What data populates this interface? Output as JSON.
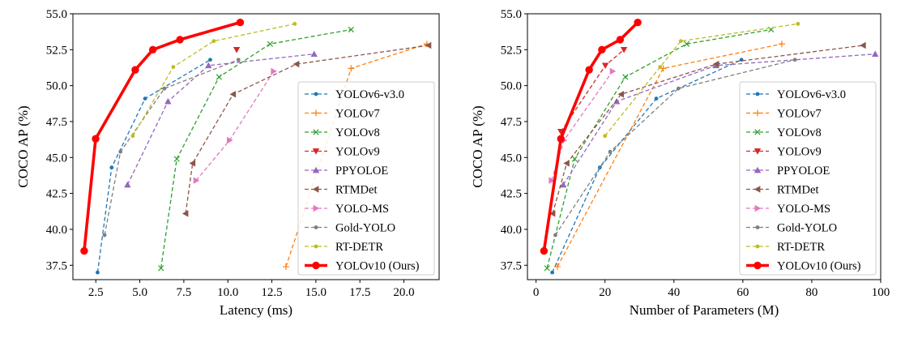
{
  "chart_data": [
    {
      "type": "line",
      "xlabel": "Latency (ms)",
      "ylabel": "COCO AP (%)",
      "xlim": [
        1.2,
        22.0
      ],
      "ylim": [
        36.5,
        55.0
      ],
      "xticks": [
        2.5,
        5.0,
        7.5,
        10.0,
        12.5,
        15.0,
        17.5,
        20.0
      ],
      "xtick_labels": [
        "2.5",
        "5.0",
        "7.5",
        "10.0",
        "12.5",
        "15.0",
        "17.5",
        "20.0"
      ],
      "yticks": [
        37.5,
        40.0,
        42.5,
        45.0,
        47.5,
        50.0,
        52.5,
        55.0
      ],
      "ytick_labels": [
        "37.5",
        "40.0",
        "42.5",
        "45.0",
        "47.5",
        "50.0",
        "52.5",
        "55.0"
      ],
      "legend_position": "lower-right",
      "series": [
        {
          "name": "YOLOv6-v3.0",
          "color": "#1f77b4",
          "marker": "point",
          "dash": "dashed",
          "x": [
            2.6,
            3.4,
            5.3,
            9.0
          ],
          "y": [
            37.0,
            44.3,
            49.1,
            51.8
          ]
        },
        {
          "name": "YOLOv7",
          "color": "#ff7f0e",
          "marker": "plus",
          "dash": "dashed",
          "x": [
            13.3,
            17.0,
            21.3
          ],
          "y": [
            37.4,
            51.2,
            52.9
          ]
        },
        {
          "name": "YOLOv8",
          "color": "#2ca02c",
          "marker": "x",
          "dash": "dashed",
          "x": [
            6.2,
            7.1,
            9.5,
            12.4,
            17.0
          ],
          "y": [
            37.3,
            44.9,
            50.6,
            52.9,
            53.9
          ]
        },
        {
          "name": "YOLOv9",
          "color": "#d62728",
          "marker": "tri-down",
          "dash": "dashed",
          "x": [
            10.5
          ],
          "y": [
            52.5
          ]
        },
        {
          "name": "PPYOLOE",
          "color": "#9467bd",
          "marker": "tri-up",
          "dash": "dashed",
          "x": [
            4.3,
            6.6,
            8.9,
            14.9
          ],
          "y": [
            43.1,
            48.9,
            51.4,
            52.2
          ]
        },
        {
          "name": "RTMDet",
          "color": "#8c564b",
          "marker": "tri-left",
          "dash": "dashed",
          "x": [
            7.6,
            8.0,
            10.3,
            13.9,
            21.4
          ],
          "y": [
            41.1,
            44.6,
            49.4,
            51.5,
            52.8
          ]
        },
        {
          "name": "YOLO-MS",
          "color": "#e377c2",
          "marker": "tri-right",
          "dash": "dashed",
          "x": [
            8.2,
            10.1,
            12.6
          ],
          "y": [
            43.4,
            46.2,
            51.0
          ]
        },
        {
          "name": "Gold-YOLO",
          "color": "#7f7f7f",
          "marker": "point",
          "dash": "dashed",
          "x": [
            3.0,
            3.9,
            6.4,
            10.6
          ],
          "y": [
            39.6,
            45.4,
            49.8,
            51.8
          ]
        },
        {
          "name": "RT-DETR",
          "color": "#bcbd22",
          "marker": "point",
          "dash": "dashed",
          "x": [
            4.6,
            6.9,
            9.2,
            13.8
          ],
          "y": [
            46.5,
            51.3,
            53.1,
            54.3
          ]
        },
        {
          "name": "YOLOv10 (Ours)",
          "color": "#ff0000",
          "marker": "circle",
          "dash": "solid",
          "bold": true,
          "x": [
            1.84,
            2.49,
            4.74,
            5.74,
            7.28,
            10.7
          ],
          "y": [
            38.5,
            46.3,
            51.1,
            52.5,
            53.2,
            54.4
          ]
        }
      ]
    },
    {
      "type": "line",
      "xlabel": "Number of Parameters (M)",
      "ylabel": "COCO AP (%)",
      "xlim": [
        -2.5,
        100.0
      ],
      "ylim": [
        36.5,
        55.0
      ],
      "xticks": [
        0,
        20,
        40,
        60,
        80,
        100
      ],
      "xtick_labels": [
        "0",
        "20",
        "40",
        "60",
        "80",
        "100"
      ],
      "yticks": [
        37.5,
        40.0,
        42.5,
        45.0,
        47.5,
        50.0,
        52.5,
        55.0
      ],
      "ytick_labels": [
        "37.5",
        "40.0",
        "42.5",
        "45.0",
        "47.5",
        "50.0",
        "52.5",
        "55.0"
      ],
      "legend_position": "lower-right",
      "series": [
        {
          "name": "YOLOv6-v3.0",
          "color": "#1f77b4",
          "marker": "point",
          "dash": "dashed",
          "x": [
            4.7,
            18.5,
            34.9,
            59.6
          ],
          "y": [
            37.0,
            44.3,
            49.1,
            51.8
          ]
        },
        {
          "name": "YOLOv7",
          "color": "#ff7f0e",
          "marker": "plus",
          "dash": "dashed",
          "x": [
            6.2,
            36.9,
            71.3
          ],
          "y": [
            37.4,
            51.2,
            52.9
          ]
        },
        {
          "name": "YOLOv8",
          "color": "#2ca02c",
          "marker": "x",
          "dash": "dashed",
          "x": [
            3.2,
            11.2,
            25.9,
            43.7,
            68.2
          ],
          "y": [
            37.3,
            44.9,
            50.6,
            52.9,
            53.9
          ]
        },
        {
          "name": "YOLOv9",
          "color": "#d62728",
          "marker": "tri-down",
          "dash": "dashed",
          "x": [
            7.2,
            20.1,
            25.5
          ],
          "y": [
            46.8,
            51.4,
            52.5
          ]
        },
        {
          "name": "PPYOLOE",
          "color": "#9467bd",
          "marker": "tri-up",
          "dash": "dashed",
          "x": [
            7.9,
            23.4,
            52.2,
            98.4
          ],
          "y": [
            43.1,
            48.9,
            51.4,
            52.2
          ]
        },
        {
          "name": "RTMDet",
          "color": "#8c564b",
          "marker": "tri-left",
          "dash": "dashed",
          "x": [
            4.8,
            8.9,
            24.7,
            52.3,
            94.9
          ],
          "y": [
            41.1,
            44.6,
            49.4,
            51.5,
            52.8
          ]
        },
        {
          "name": "YOLO-MS",
          "color": "#e377c2",
          "marker": "tri-right",
          "dash": "dashed",
          "x": [
            4.5,
            8.1,
            22.2
          ],
          "y": [
            43.4,
            46.2,
            51.0
          ]
        },
        {
          "name": "Gold-YOLO",
          "color": "#7f7f7f",
          "marker": "point",
          "dash": "dashed",
          "x": [
            5.6,
            21.5,
            41.3,
            75.1
          ],
          "y": [
            39.6,
            45.4,
            49.8,
            51.8
          ]
        },
        {
          "name": "RT-DETR",
          "color": "#bcbd22",
          "marker": "point",
          "dash": "dashed",
          "x": [
            20.0,
            36.0,
            42.0,
            76.0
          ],
          "y": [
            46.5,
            51.3,
            53.1,
            54.3
          ]
        },
        {
          "name": "YOLOv10 (Ours)",
          "color": "#ff0000",
          "marker": "circle",
          "dash": "solid",
          "bold": true,
          "x": [
            2.3,
            7.2,
            15.4,
            19.1,
            24.4,
            29.5
          ],
          "y": [
            38.5,
            46.3,
            51.1,
            52.5,
            53.2,
            54.4
          ]
        }
      ]
    }
  ]
}
